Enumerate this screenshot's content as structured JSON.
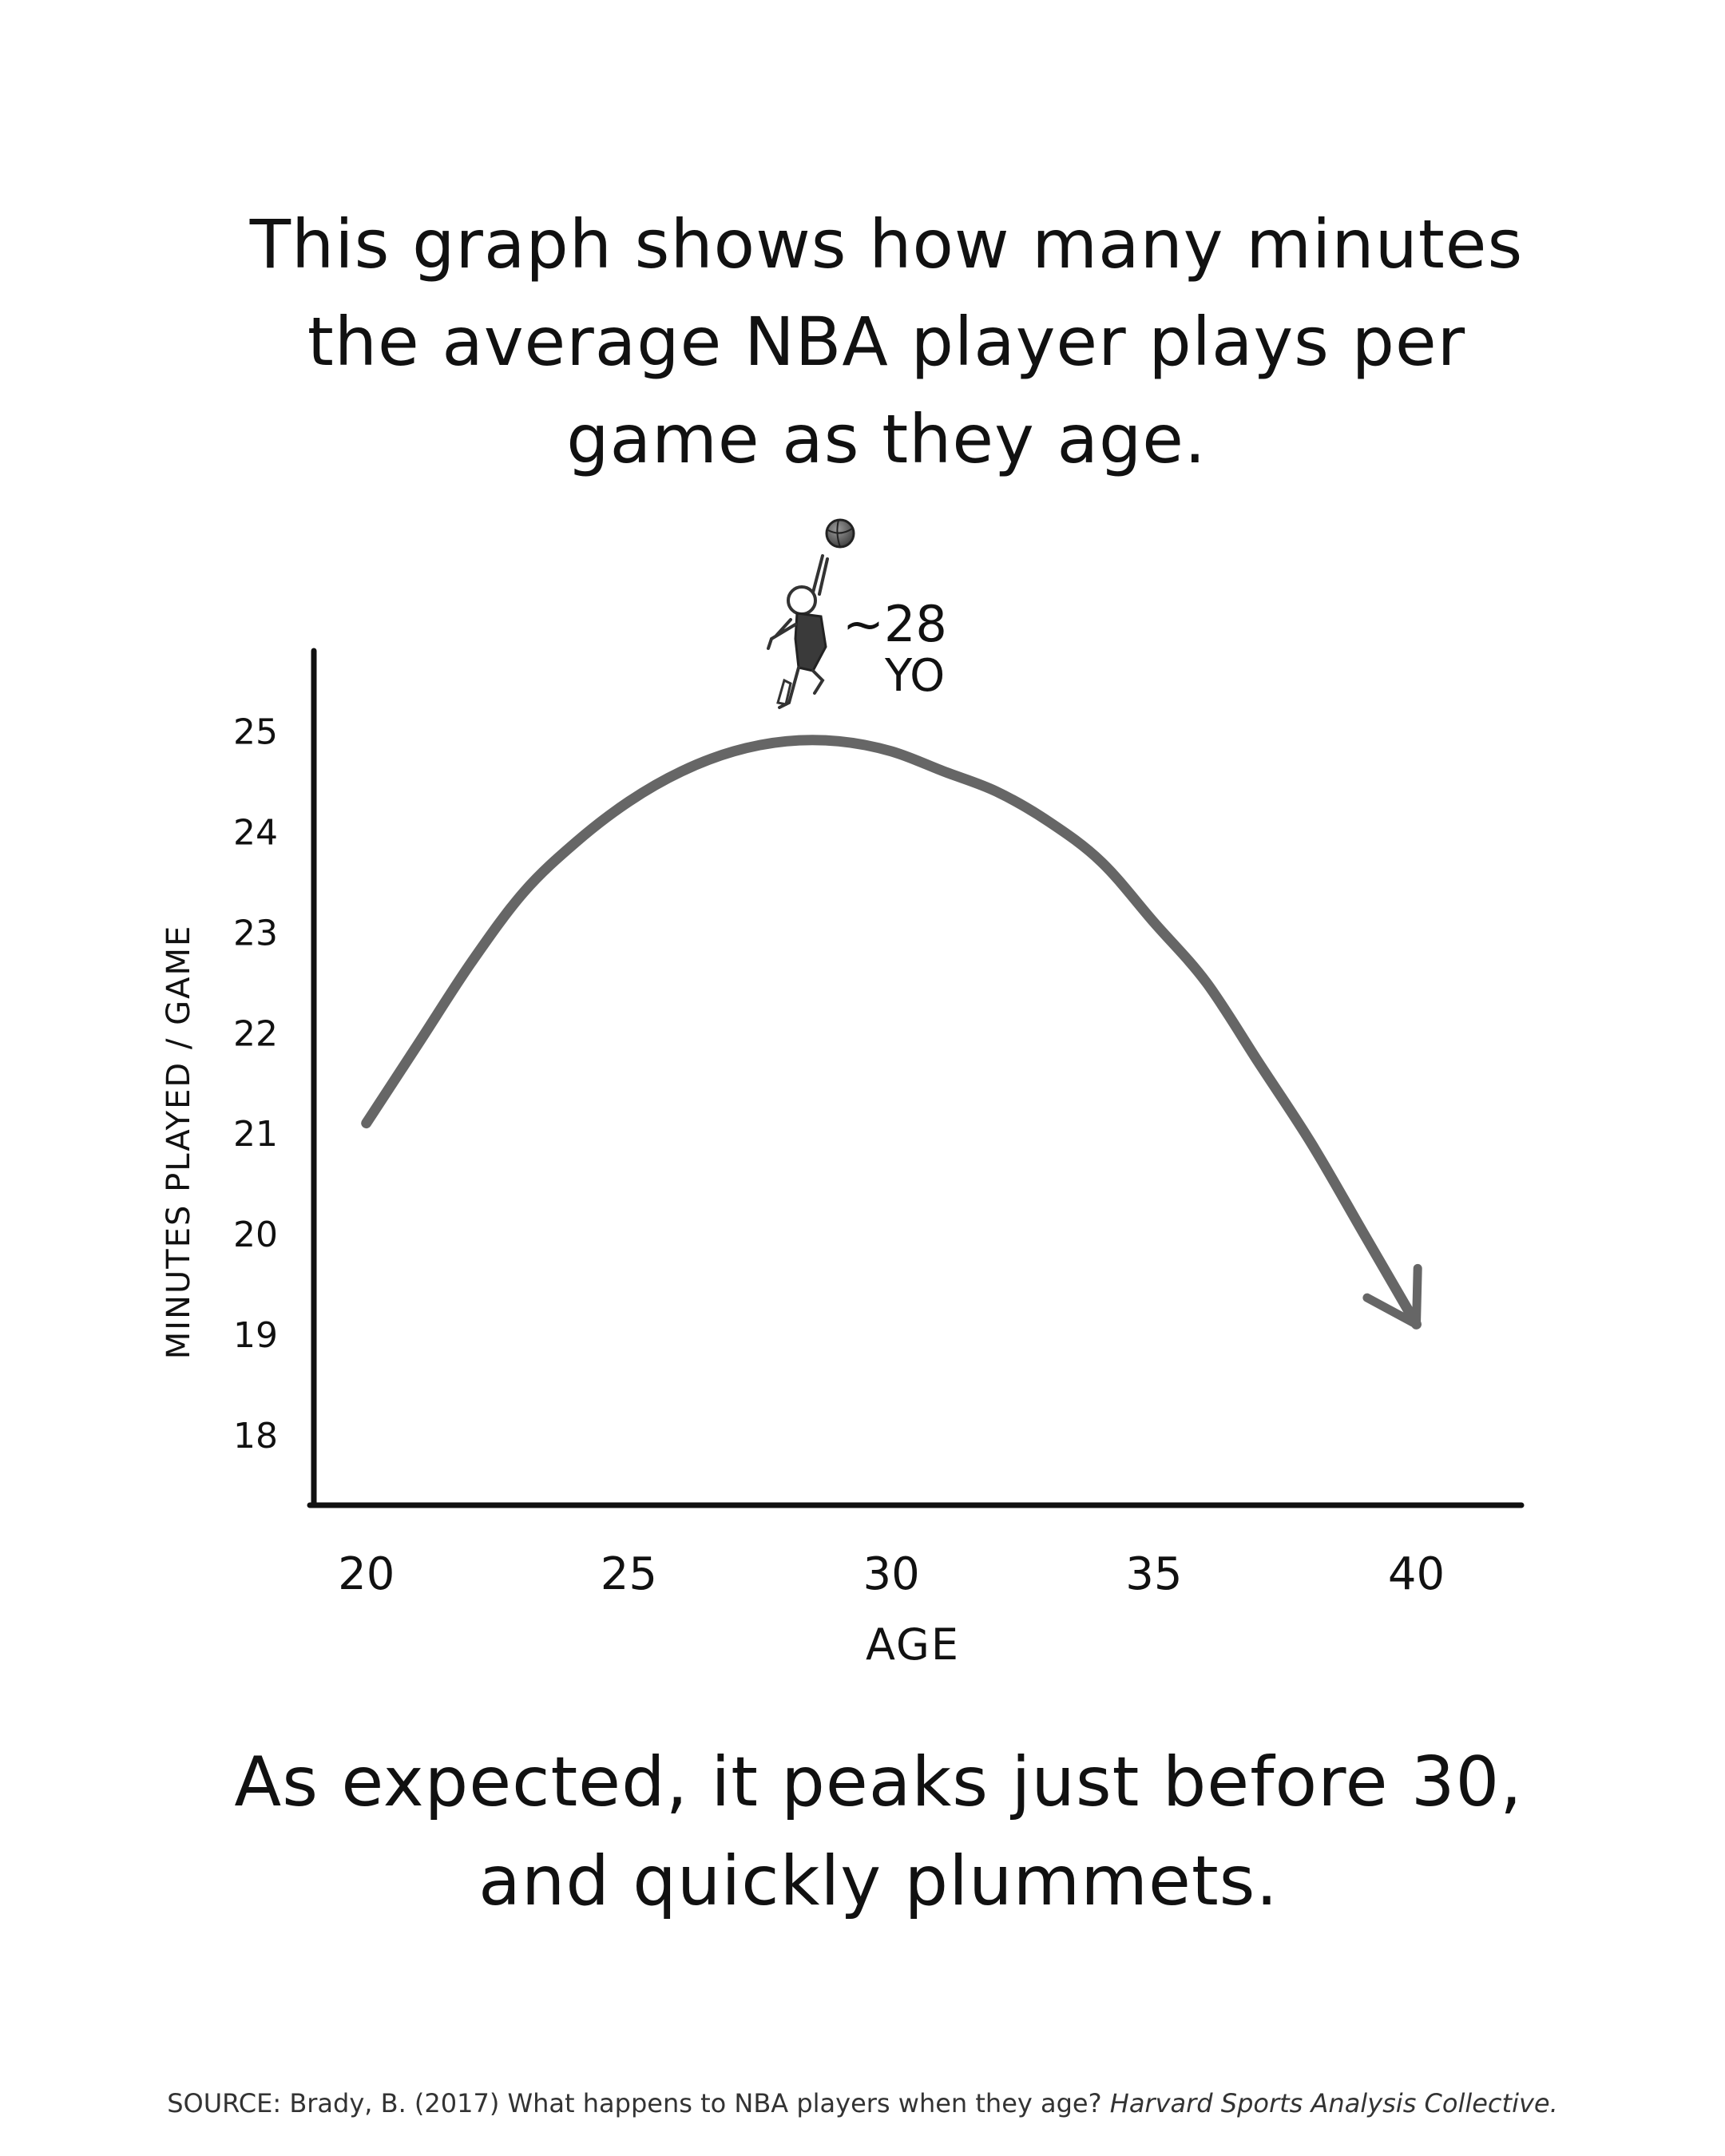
{
  "headline": "This graph shows how many minutes the average NBA player plays per game as they age.",
  "conclusion": "As expected, it peaks just before 30, and quickly plummets.",
  "source": {
    "lead": "SOURCE: Brady, B. (2017) What happens to NBA players when they age?",
    "journal": "Harvard Sports Analysis Collective."
  },
  "annotation": {
    "line1": "~28",
    "line2": "YO"
  },
  "colors": {
    "curve": "#666666",
    "axis": "#111111",
    "text": "#111111"
  },
  "chart_data": {
    "type": "line",
    "xlabel": "AGE",
    "ylabel": "MINUTES PLAYED / GAME",
    "xlim": [
      19,
      42
    ],
    "ylim": [
      17.3,
      25.8
    ],
    "x_ticks": [
      20,
      25,
      30,
      35,
      40
    ],
    "y_ticks": [
      18,
      19,
      20,
      21,
      22,
      23,
      24,
      25
    ],
    "series": [
      {
        "x": [
          20,
          21,
          22,
          23,
          24,
          25,
          26,
          27,
          28,
          29,
          30,
          31,
          32,
          33,
          34,
          35,
          36,
          37,
          38,
          39,
          40
        ],
        "y": [
          21.1,
          21.9,
          22.7,
          23.4,
          23.9,
          24.3,
          24.6,
          24.8,
          24.9,
          24.9,
          24.8,
          24.6,
          24.4,
          24.1,
          23.7,
          23.1,
          22.5,
          21.7,
          20.9,
          20.0,
          19.1
        ]
      }
    ],
    "grid": false,
    "legend": "none",
    "peak_age": 28
  }
}
